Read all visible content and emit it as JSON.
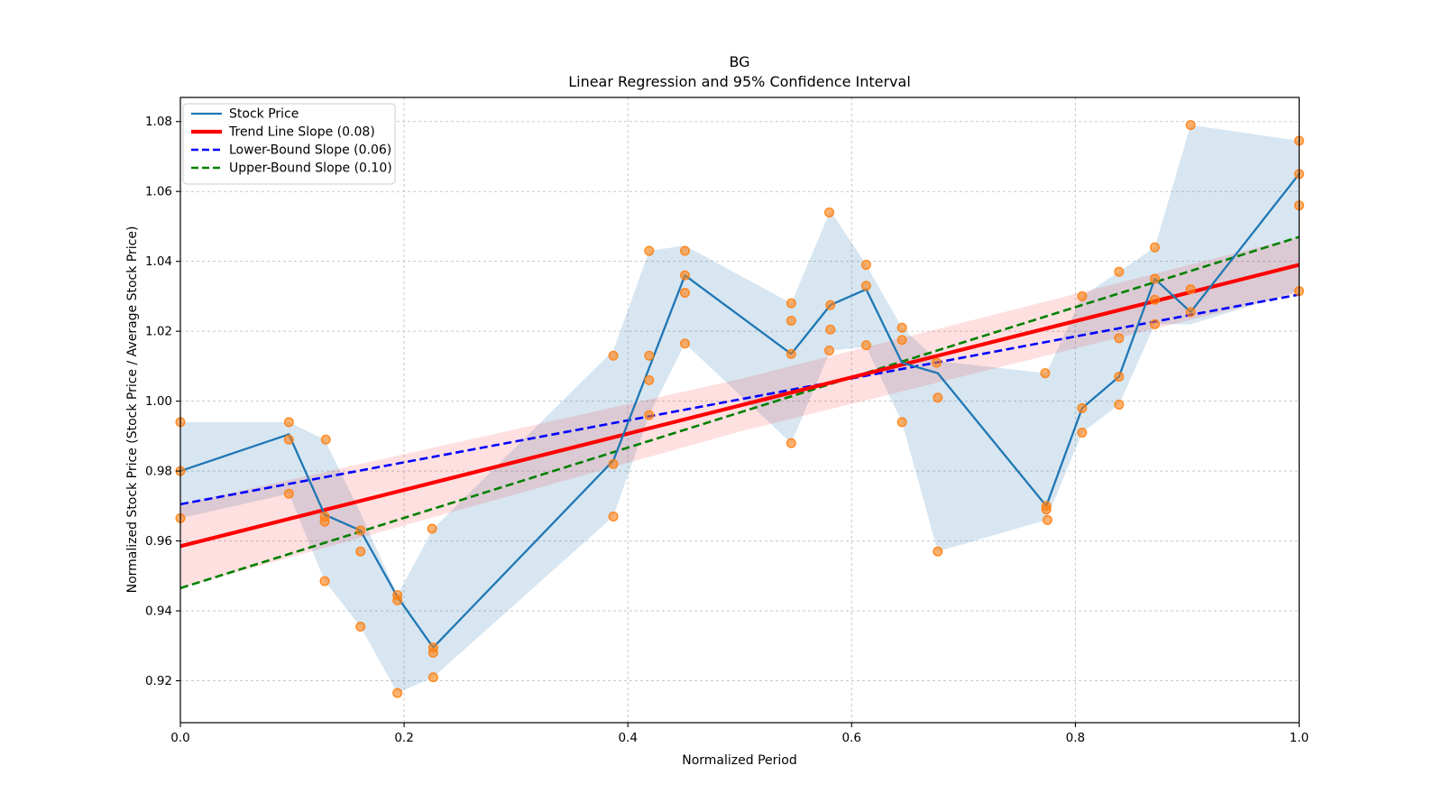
{
  "chart_data": {
    "type": "line",
    "title": "BG",
    "subtitle": "Linear Regression and 95% Confidence Interval",
    "xlabel": "Normalized Period",
    "ylabel": "Normalized Stock Price (Stock Price / Average Stock Price)",
    "xlim": [
      0,
      1
    ],
    "ylim": [
      0.908,
      1.0869
    ],
    "grid": true,
    "grid_style": "dashed",
    "xticks": {
      "values": [
        0,
        0.2,
        0.4,
        0.6,
        0.8,
        1.0
      ],
      "labels": [
        "0.0",
        "0.2",
        "0.4",
        "0.6",
        "0.8",
        "1.0"
      ]
    },
    "yticks": {
      "values": [
        0.92,
        0.94,
        0.96,
        0.98,
        1.0,
        1.02,
        1.04,
        1.06,
        1.08
      ],
      "labels": [
        "0.92",
        "0.94",
        "0.96",
        "0.98",
        "1.00",
        "1.02",
        "1.04",
        "1.06",
        "1.08"
      ]
    },
    "legend": {
      "position": "upper left",
      "items": [
        {
          "label": "Stock Price",
          "color": "#1f77b4",
          "dash": "solid",
          "width": 2.3
        },
        {
          "label": "Trend Line Slope (0.08)",
          "color": "#ff0000",
          "dash": "solid",
          "width": 4.2
        },
        {
          "label": "Lower-Bound Slope (0.06)",
          "color": "#0000ff",
          "dash": "dashed",
          "width": 2.6
        },
        {
          "label": "Upper-Bound Slope (0.10)",
          "color": "#008000",
          "dash": "dashed",
          "width": 2.6
        }
      ]
    },
    "series": {
      "stock_price": {
        "name": "Stock Price",
        "color": "#1f77b4",
        "points": [
          [
            0.0,
            0.98
          ],
          [
            0.097,
            0.9905
          ],
          [
            0.129,
            0.9675
          ],
          [
            0.161,
            0.963
          ],
          [
            0.194,
            0.944
          ],
          [
            0.226,
            0.9295
          ],
          [
            0.387,
            0.983
          ],
          [
            0.451,
            1.036
          ],
          [
            0.546,
            1.0135
          ],
          [
            0.581,
            1.0275
          ],
          [
            0.613,
            1.032
          ],
          [
            0.645,
            1.011
          ],
          [
            0.677,
            1.008
          ],
          [
            0.774,
            0.97
          ],
          [
            0.806,
            0.998
          ],
          [
            0.839,
            1.007
          ],
          [
            0.871,
            1.035
          ],
          [
            0.903,
            1.0255
          ],
          [
            1.0,
            1.065
          ]
        ]
      },
      "scatter": {
        "name": "Daily Prices",
        "color": "#ff7f0e",
        "opacity": 0.6,
        "points": [
          [
            0.0,
            0.994
          ],
          [
            0.0,
            0.98
          ],
          [
            0.0,
            0.9665
          ],
          [
            0.097,
            0.994
          ],
          [
            0.097,
            0.989
          ],
          [
            0.097,
            0.9735
          ],
          [
            0.13,
            0.989
          ],
          [
            0.129,
            0.967
          ],
          [
            0.129,
            0.9655
          ],
          [
            0.129,
            0.9485
          ],
          [
            0.161,
            0.963
          ],
          [
            0.161,
            0.957
          ],
          [
            0.161,
            0.9355
          ],
          [
            0.194,
            0.9445
          ],
          [
            0.194,
            0.943
          ],
          [
            0.194,
            0.9165
          ],
          [
            0.225,
            0.9635
          ],
          [
            0.226,
            0.9295
          ],
          [
            0.226,
            0.928
          ],
          [
            0.226,
            0.921
          ],
          [
            0.387,
            1.013
          ],
          [
            0.387,
            0.982
          ],
          [
            0.387,
            0.967
          ],
          [
            0.419,
            1.043
          ],
          [
            0.419,
            1.013
          ],
          [
            0.419,
            1.006
          ],
          [
            0.419,
            0.996
          ],
          [
            0.451,
            1.043
          ],
          [
            0.451,
            1.036
          ],
          [
            0.451,
            1.031
          ],
          [
            0.451,
            1.0165
          ],
          [
            0.546,
            1.028
          ],
          [
            0.546,
            1.023
          ],
          [
            0.546,
            1.0135
          ],
          [
            0.546,
            0.988
          ],
          [
            0.58,
            1.054
          ],
          [
            0.581,
            1.0275
          ],
          [
            0.581,
            1.0205
          ],
          [
            0.58,
            1.0145
          ],
          [
            0.613,
            1.039
          ],
          [
            0.613,
            1.033
          ],
          [
            0.613,
            1.016
          ],
          [
            0.645,
            1.021
          ],
          [
            0.645,
            1.0175
          ],
          [
            0.645,
            0.994
          ],
          [
            0.676,
            1.011
          ],
          [
            0.677,
            1.001
          ],
          [
            0.677,
            0.957
          ],
          [
            0.773,
            1.008
          ],
          [
            0.774,
            0.97
          ],
          [
            0.774,
            0.969
          ],
          [
            0.775,
            0.966
          ],
          [
            0.806,
            1.03
          ],
          [
            0.806,
            0.998
          ],
          [
            0.806,
            0.991
          ],
          [
            0.839,
            1.037
          ],
          [
            0.839,
            1.018
          ],
          [
            0.839,
            1.007
          ],
          [
            0.839,
            0.999
          ],
          [
            0.871,
            1.044
          ],
          [
            0.871,
            1.035
          ],
          [
            0.871,
            1.029
          ],
          [
            0.871,
            1.022
          ],
          [
            0.903,
            1.079
          ],
          [
            0.903,
            1.032
          ],
          [
            0.903,
            1.0255
          ],
          [
            1.0,
            1.0745
          ],
          [
            1.0,
            1.065
          ],
          [
            1.0,
            1.056
          ],
          [
            1.0,
            1.0315
          ]
        ]
      },
      "trend_line": {
        "name": "Trend Line",
        "slope": 0.08,
        "color": "#ff0000",
        "endpoints": [
          [
            0,
            0.9585
          ],
          [
            1,
            1.039
          ]
        ]
      },
      "lower_bound": {
        "name": "Lower-Bound",
        "slope": 0.06,
        "color": "#0000ff",
        "endpoints": [
          [
            0,
            0.9705
          ],
          [
            1,
            1.0305
          ]
        ]
      },
      "upper_bound": {
        "name": "Upper-Bound",
        "slope": 0.1,
        "color": "#008000",
        "endpoints": [
          [
            0,
            0.9465
          ],
          [
            1,
            1.047
          ]
        ]
      },
      "minmax_band": {
        "name": "Stock price min-max envelope",
        "color": "#1f77b4",
        "opacity": 0.18,
        "x": [
          0.0,
          0.097,
          0.129,
          0.161,
          0.194,
          0.226,
          0.387,
          0.419,
          0.451,
          0.546,
          0.581,
          0.613,
          0.645,
          0.677,
          0.774,
          0.806,
          0.839,
          0.871,
          0.903,
          1.0
        ],
        "top": [
          0.994,
          0.994,
          0.989,
          0.968,
          0.9445,
          0.9635,
          1.0145,
          1.043,
          1.0445,
          1.028,
          1.0545,
          1.039,
          1.021,
          1.0115,
          1.008,
          1.03,
          1.037,
          1.044,
          1.079,
          1.0745
        ],
        "bottom": [
          0.9665,
          0.9735,
          0.9485,
          0.9355,
          0.9165,
          0.921,
          0.967,
          0.996,
          1.0165,
          0.988,
          1.0145,
          1.0155,
          0.994,
          0.957,
          0.966,
          0.991,
          0.999,
          1.022,
          1.022,
          1.0315
        ]
      },
      "ci_band": {
        "name": "95% confidence interval",
        "color": "#ff0000",
        "opacity": 0.12,
        "x": [
          0.0,
          0.25,
          0.5,
          0.75,
          1.0
        ],
        "top": [
          0.9705,
          0.9884,
          1.0063,
          1.0266,
          1.047
        ],
        "bottom": [
          0.9465,
          0.9689,
          0.9913,
          1.0111,
          1.031
        ]
      }
    },
    "colors": {
      "background": "#ffffff",
      "spine": "#000000",
      "grid": "#bfbfbf",
      "legend_border": "#cccccc",
      "stock_line": "#1f77b4",
      "scatter": "#ff7f0e",
      "trend": "#ff0000",
      "lower": "#0000ff",
      "upper": "#008000"
    }
  }
}
